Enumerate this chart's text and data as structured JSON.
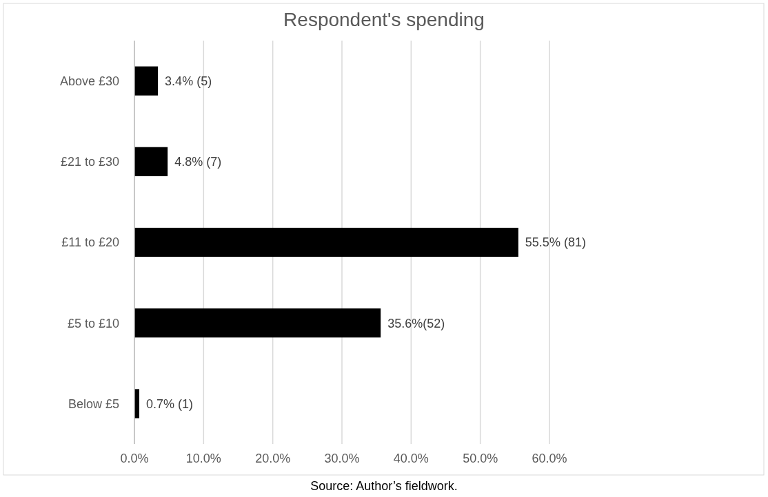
{
  "chart_data": {
    "type": "bar",
    "orientation": "horizontal",
    "title": "Respondent's spending",
    "categories": [
      "Above £30",
      "£21 to £30",
      "£11 to £20",
      "£5 to £10",
      "Below £5"
    ],
    "values": [
      3.4,
      4.8,
      55.5,
      35.6,
      0.7
    ],
    "value_labels": [
      "3.4% (5)",
      "4.8% (7)",
      "55.5% (81)",
      "35.6%(52)",
      "0.7% (1)"
    ],
    "color": "#000000",
    "xlim": [
      0,
      60
    ],
    "xticks": [
      {
        "value": 0,
        "label": "0.0%"
      },
      {
        "value": 10,
        "label": "10.0%"
      },
      {
        "value": 20,
        "label": "20.0%"
      },
      {
        "value": 30,
        "label": "30.0%"
      },
      {
        "value": 40,
        "label": "40.0%"
      },
      {
        "value": 50,
        "label": "50.0%"
      },
      {
        "value": 60,
        "label": "60.0%"
      }
    ],
    "grid": "x",
    "annotations": [
      "Source: Author’s fieldwork."
    ]
  }
}
